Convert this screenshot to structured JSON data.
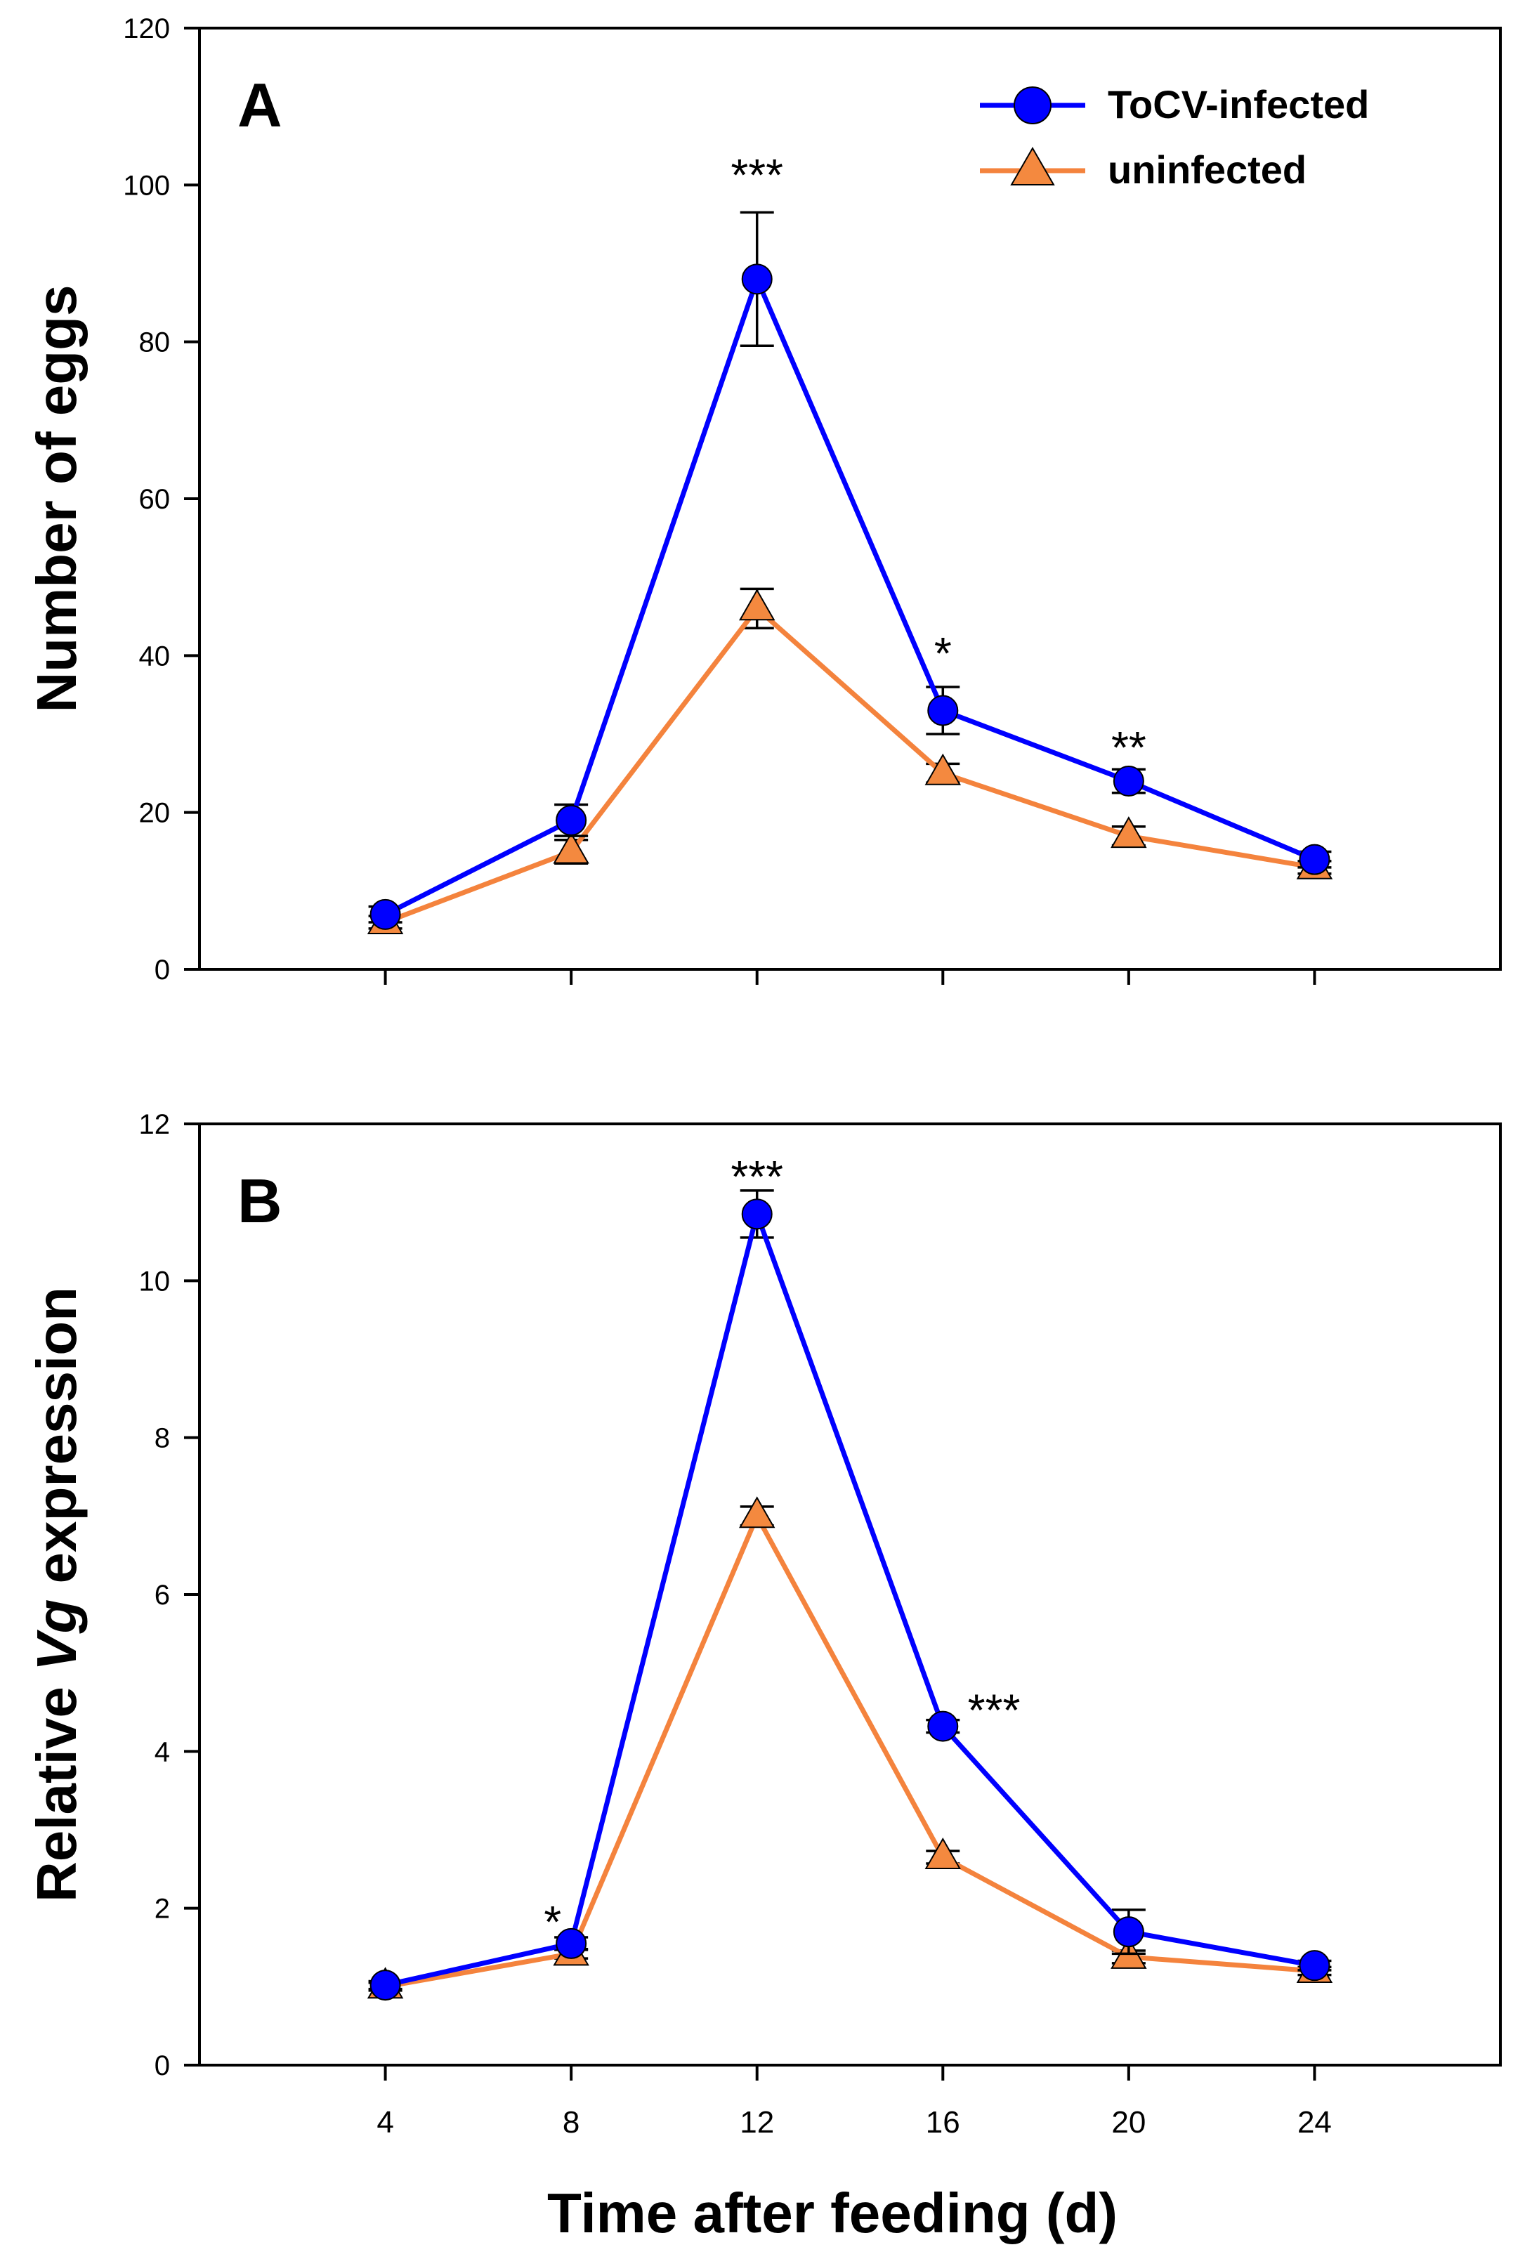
{
  "colors": {
    "infected": "#0000FF",
    "infected_marker": "#0000FF",
    "uninfected": "#F4833D",
    "uninfected_marker": "#F4893F",
    "axis": "#000000"
  },
  "xlabel": "Time after feeding (d)",
  "chart_data": [
    {
      "type": "line",
      "panel_label": "A",
      "title": "",
      "xlabel": "Time after feeding (d)",
      "ylabel": "Number of eggs",
      "x": [
        4,
        8,
        12,
        16,
        20,
        24
      ],
      "xlim": [
        0,
        28
      ],
      "ylim": [
        0,
        120
      ],
      "yticks": [
        0,
        20,
        40,
        60,
        80,
        100,
        120
      ],
      "xticks": [
        4,
        8,
        12,
        16,
        20,
        24
      ],
      "legend": "top-right",
      "series": [
        {
          "name": "ToCV-infected",
          "marker": "circle",
          "values": [
            7,
            19,
            88,
            33,
            24,
            14
          ],
          "errors": [
            1,
            2,
            8.5,
            3,
            1.5,
            1
          ]
        },
        {
          "name": "uninfected",
          "marker": "triangle",
          "values": [
            6,
            15,
            46,
            25,
            17,
            13
          ],
          "errors": [
            0.8,
            1.5,
            2.5,
            1.2,
            1.2,
            0.8
          ]
        }
      ],
      "annotations": [
        {
          "x": 12,
          "text": "***",
          "y": 102
        },
        {
          "x": 16,
          "text": "*",
          "y": 41
        },
        {
          "x": 20,
          "text": "**",
          "y": 29
        }
      ]
    },
    {
      "type": "line",
      "panel_label": "B",
      "title": "",
      "xlabel": "Time after feeding (d)",
      "ylabel_prefix": "Relative ",
      "ylabel_italic": "Vg",
      "ylabel_suffix": " expression",
      "x": [
        4,
        8,
        12,
        16,
        20,
        24
      ],
      "xlim": [
        0,
        28
      ],
      "ylim": [
        0,
        12
      ],
      "yticks": [
        0,
        2,
        4,
        6,
        8,
        10,
        12
      ],
      "xticks": [
        4,
        8,
        12,
        16,
        20,
        24
      ],
      "series": [
        {
          "name": "ToCV-infected",
          "marker": "circle",
          "values": [
            1.02,
            1.55,
            10.85,
            4.32,
            1.7,
            1.27
          ],
          "errors": [
            0.05,
            0.08,
            0.3,
            0.08,
            0.28,
            0.06
          ]
        },
        {
          "name": "uninfected",
          "marker": "triangle",
          "values": [
            1.0,
            1.42,
            7.0,
            2.65,
            1.38,
            1.2
          ],
          "errors": [
            0.05,
            0.06,
            0.12,
            0.08,
            0.08,
            0.05
          ]
        }
      ],
      "annotations": [
        {
          "x": 7.6,
          "text": "*",
          "y": 1.9
        },
        {
          "x": 12,
          "text": "***",
          "y": 11.4
        },
        {
          "x": 17.1,
          "text": "***",
          "y": 4.6
        }
      ]
    }
  ]
}
